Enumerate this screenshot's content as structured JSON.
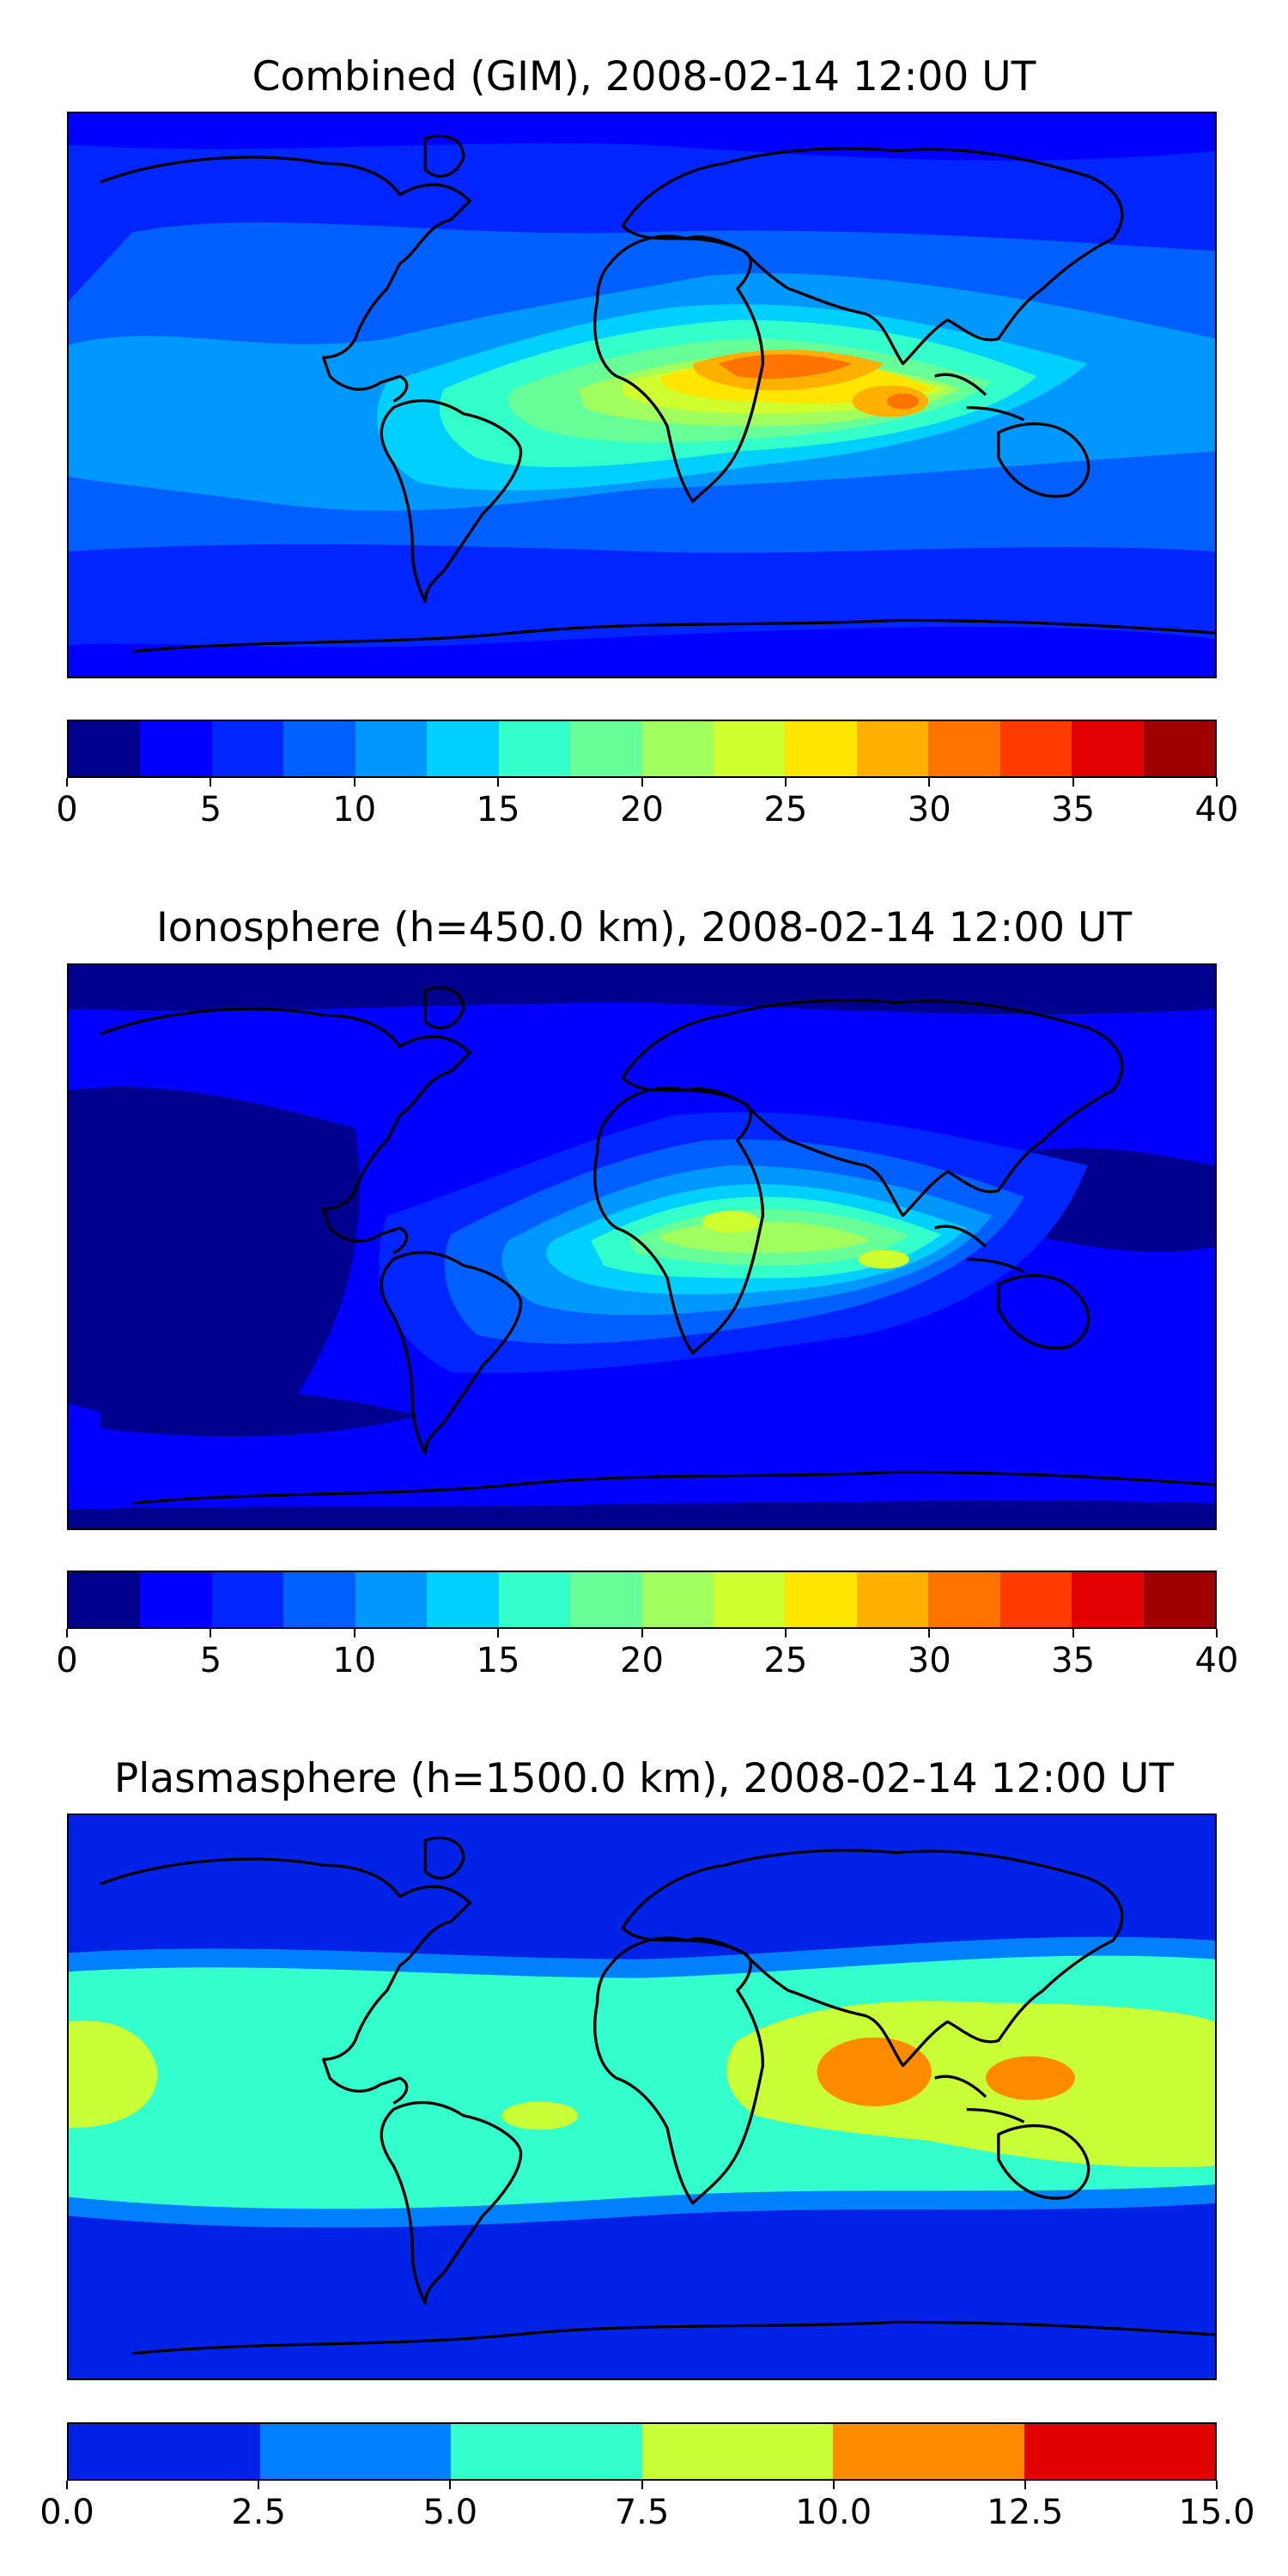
{
  "panels": [
    {
      "title": "Combined (GIM), 2008-02-14 12:00 UT",
      "ticks": [
        "0",
        "5",
        "10",
        "15",
        "20",
        "25",
        "30",
        "35",
        "40"
      ],
      "chart_data": {
        "type": "heatmap",
        "title": "Combined (GIM), 2008-02-14 12:00 UT",
        "projection": "global map with coastlines",
        "levels": [
          0,
          2.5,
          5,
          7.5,
          10,
          12.5,
          15,
          17.5,
          20,
          22.5,
          25,
          27.5,
          30,
          32.5,
          35,
          37.5,
          40
        ],
        "colorbar_range": [
          0,
          40
        ],
        "colors": [
          "#00008f",
          "#0000ff",
          "#0025ff",
          "#0060ff",
          "#0097ff",
          "#00d0ff",
          "#33ffcb",
          "#66ff98",
          "#a0ff5e",
          "#cfff2f",
          "#ffe600",
          "#ffb000",
          "#ff7400",
          "#ff3b00",
          "#e30000",
          "#9f0000"
        ]
      }
    },
    {
      "title": "Ionosphere  (h=450.0 km), 2008-02-14 12:00 UT",
      "ticks": [
        "0",
        "5",
        "10",
        "15",
        "20",
        "25",
        "30",
        "35",
        "40"
      ],
      "chart_data": {
        "type": "heatmap",
        "title": "Ionosphere  (h=450.0 km), 2008-02-14 12:00 UT",
        "projection": "global map with coastlines",
        "levels": [
          0,
          2.5,
          5,
          7.5,
          10,
          12.5,
          15,
          17.5,
          20,
          22.5,
          25,
          27.5,
          30,
          32.5,
          35,
          37.5,
          40
        ],
        "colorbar_range": [
          0,
          40
        ],
        "colors": [
          "#00008f",
          "#0000ff",
          "#0025ff",
          "#0060ff",
          "#0097ff",
          "#00d0ff",
          "#33ffcb",
          "#66ff98",
          "#a0ff5e",
          "#cfff2f",
          "#ffe600",
          "#ffb000",
          "#ff7400",
          "#ff3b00",
          "#e30000",
          "#9f0000"
        ]
      }
    },
    {
      "title": "Plasmasphere (h=1500.0 km), 2008-02-14 12:00 UT",
      "ticks": [
        "0.0",
        "2.5",
        "5.0",
        "7.5",
        "10.0",
        "12.5",
        "15.0"
      ],
      "chart_data": {
        "type": "heatmap",
        "title": "Plasmasphere (h=1500.0 km), 2008-02-14 12:00 UT",
        "projection": "global map with coastlines",
        "levels": [
          0,
          2.5,
          5,
          7.5,
          10,
          12.5,
          15
        ],
        "colorbar_range": [
          0,
          15
        ],
        "colors": [
          "#0022e6",
          "#0080ff",
          "#33ffcc",
          "#c8ff36",
          "#ff8c00",
          "#e00000"
        ]
      }
    }
  ]
}
